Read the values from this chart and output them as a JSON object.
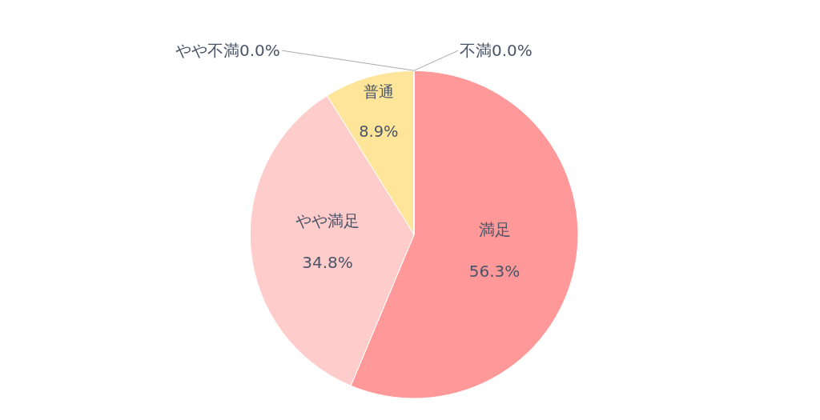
{
  "chart_data": {
    "type": "pie",
    "categories": [
      "満足",
      "やや満足",
      "普通",
      "やや不満",
      "不満"
    ],
    "values": [
      56.3,
      34.8,
      8.9,
      0.0,
      0.0
    ],
    "value_labels": [
      "56.3%",
      "34.8%",
      "8.9%",
      "0.0%",
      "0.0%"
    ],
    "colors": [
      "#ff9999",
      "#ffcccc",
      "#ffe599",
      "#c9daf8",
      "#9fc5e8"
    ]
  }
}
